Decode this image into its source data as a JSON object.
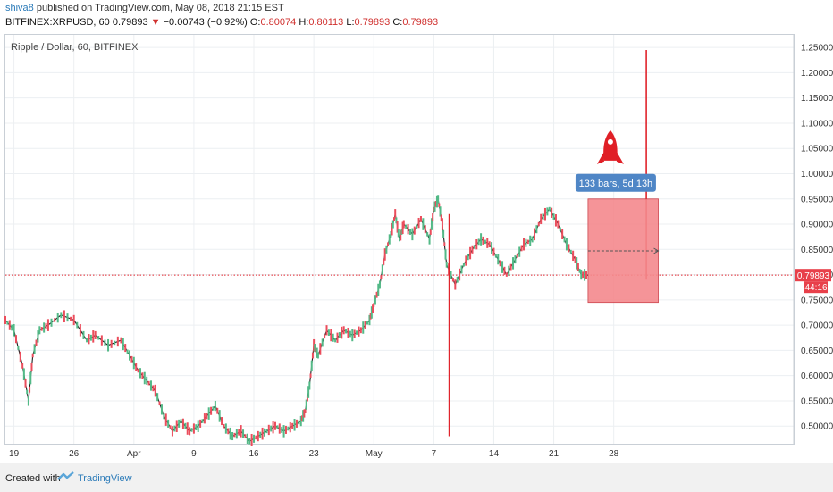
{
  "header": {
    "author": "shiva8",
    "published_text": " published on TradingView.com, May 08, 2018 21:15 EST",
    "symbol": "BITFINEX:XRPUSD, 60",
    "last": "0.79893",
    "down_arrow": "▼",
    "change": "−0.00743 (−0.92%)",
    "o_label": "O:",
    "o_value": "0.80074",
    "h_label": "H:",
    "h_value": "0.80113",
    "l_label": "L:",
    "l_value": "0.79893",
    "c_label": "C:",
    "c_value": "0.79893"
  },
  "footer": {
    "created_with": "Created with",
    "brand": "TradingView",
    "logo_icon": "tradingview-logo-icon"
  },
  "chart_data": {
    "type": "line",
    "title": "Ripple / Dollar, 60, BITFINEX",
    "x_ticks": [
      "19",
      "26",
      "Apr",
      "9",
      "16",
      "23",
      "May",
      "7",
      "14",
      "21",
      "28"
    ],
    "y_ticks": [
      "1.25000",
      "1.20000",
      "1.15000",
      "1.10000",
      "1.05000",
      "1.00000",
      "0.95000",
      "0.90000",
      "0.85000",
      "0.80000",
      "0.75000",
      "0.70000",
      "0.65000",
      "0.60000",
      "0.55000",
      "0.50000"
    ],
    "ylim": [
      0.465,
      1.275
    ],
    "xlim_days": [
      -2,
      90
    ],
    "price_points": [
      [
        -2.0,
        0.71
      ],
      [
        -1.0,
        0.69
      ],
      [
        0.0,
        0.62
      ],
      [
        0.7,
        0.55
      ],
      [
        1.2,
        0.64
      ],
      [
        2.0,
        0.69
      ],
      [
        3.0,
        0.7
      ],
      [
        4.5,
        0.72
      ],
      [
        6.0,
        0.71
      ],
      [
        7.5,
        0.67
      ],
      [
        8.5,
        0.68
      ],
      [
        10.0,
        0.66
      ],
      [
        11.5,
        0.67
      ],
      [
        12.5,
        0.64
      ],
      [
        13.5,
        0.61
      ],
      [
        14.5,
        0.59
      ],
      [
        15.5,
        0.57
      ],
      [
        16.5,
        0.52
      ],
      [
        17.5,
        0.49
      ],
      [
        18.5,
        0.51
      ],
      [
        19.5,
        0.49
      ],
      [
        20.5,
        0.5
      ],
      [
        21.5,
        0.52
      ],
      [
        22.5,
        0.54
      ],
      [
        23.5,
        0.5
      ],
      [
        24.5,
        0.48
      ],
      [
        25.5,
        0.49
      ],
      [
        26.5,
        0.47
      ],
      [
        27.5,
        0.48
      ],
      [
        28.5,
        0.49
      ],
      [
        29.5,
        0.5
      ],
      [
        30.5,
        0.49
      ],
      [
        31.5,
        0.5
      ],
      [
        32.5,
        0.51
      ],
      [
        33.0,
        0.53
      ],
      [
        33.5,
        0.58
      ],
      [
        34.0,
        0.66
      ],
      [
        34.5,
        0.64
      ],
      [
        35.5,
        0.69
      ],
      [
        36.5,
        0.67
      ],
      [
        37.5,
        0.69
      ],
      [
        38.5,
        0.68
      ],
      [
        39.5,
        0.69
      ],
      [
        40.5,
        0.71
      ],
      [
        41.0,
        0.74
      ],
      [
        41.7,
        0.78
      ],
      [
        42.3,
        0.84
      ],
      [
        43.0,
        0.88
      ],
      [
        43.5,
        0.92
      ],
      [
        44.0,
        0.87
      ],
      [
        44.5,
        0.9
      ],
      [
        45.5,
        0.88
      ],
      [
        46.5,
        0.91
      ],
      [
        47.5,
        0.87
      ],
      [
        48.0,
        0.93
      ],
      [
        48.5,
        0.95
      ],
      [
        49.0,
        0.9
      ],
      [
        49.5,
        0.82
      ],
      [
        50.5,
        0.78
      ],
      [
        51.5,
        0.82
      ],
      [
        52.5,
        0.85
      ],
      [
        53.5,
        0.87
      ],
      [
        54.5,
        0.86
      ],
      [
        55.5,
        0.83
      ],
      [
        56.5,
        0.8
      ],
      [
        57.5,
        0.83
      ],
      [
        58.5,
        0.86
      ],
      [
        59.5,
        0.87
      ],
      [
        60.5,
        0.91
      ],
      [
        61.5,
        0.93
      ],
      [
        62.5,
        0.9
      ],
      [
        63.5,
        0.86
      ],
      [
        64.5,
        0.83
      ],
      [
        65.2,
        0.8
      ],
      [
        66.0,
        0.79893
      ]
    ],
    "wicks": [
      {
        "day": 49.8,
        "high": 0.92,
        "low": 0.48
      },
      {
        "day": 72.8,
        "high": 1.245,
        "low": 0.79
      }
    ],
    "current_price": 0.79893,
    "current_price_label": "0.79893",
    "countdown_label": "44:16",
    "projection": {
      "start_day": 66.0,
      "end_day": 74.2,
      "high": 0.95,
      "low": 0.745,
      "mid": 0.847,
      "label": "133 bars, 5d 13h"
    },
    "rocket_icon": "rocket-icon",
    "colors": {
      "up": "#53b987",
      "down": "#eb4d5c",
      "price_line": "#1f1f1f",
      "wick": "#e0242c",
      "projection_fill": "#f5898d",
      "projection_edge": "#c7333d",
      "price_tag": "#e8404a",
      "label_bg": "#4f86c6",
      "rocket": "#e01f26",
      "grid": "#eceff2",
      "axis_text": "#333333"
    }
  }
}
